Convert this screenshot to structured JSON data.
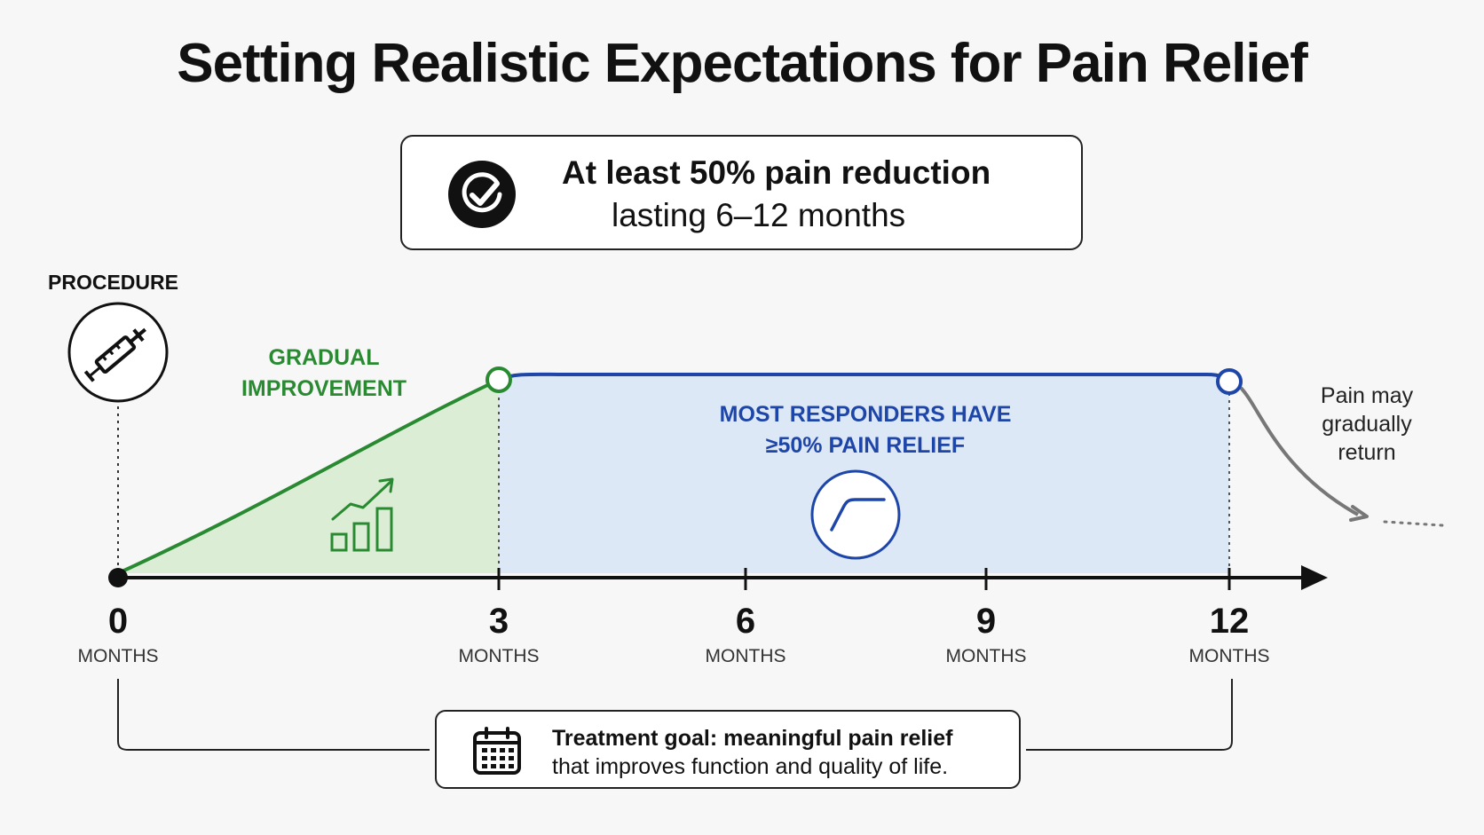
{
  "title": "Setting Realistic Expectations for Pain Relief",
  "summary": {
    "line1": "At least 50% pain reduction",
    "line2": "lasting 6–12 months",
    "icon": "check-circle-icon"
  },
  "procedure": {
    "label": "PROCEDURE",
    "icon": "syringe-icon"
  },
  "phases": {
    "gradual": {
      "label_line1": "GRADUAL",
      "label_line2": "IMPROVEMENT",
      "icon": "bar-chart-up-icon",
      "color": "#2a8a32",
      "fill": "#dcedd6"
    },
    "responders": {
      "label_line1": "MOST RESPONDERS HAVE",
      "label_line2": "≥50% PAIN RELIEF",
      "icon": "plateau-curve-icon",
      "color": "#1d46a8",
      "fill": "#dde8f7"
    },
    "return": {
      "label_line1": "Pain may",
      "label_line2": "gradually",
      "label_line3": "return",
      "color": "#777777"
    }
  },
  "axis": {
    "ticks": [
      {
        "value": "0",
        "unit": "MONTHS"
      },
      {
        "value": "3",
        "unit": "MONTHS"
      },
      {
        "value": "6",
        "unit": "MONTHS"
      },
      {
        "value": "9",
        "unit": "MONTHS"
      },
      {
        "value": "12",
        "unit": "MONTHS"
      }
    ]
  },
  "goal": {
    "line1": "Treatment goal:  meaningful pain relief",
    "line2": "that improves function and quality of life.",
    "icon": "calendar-icon"
  }
}
